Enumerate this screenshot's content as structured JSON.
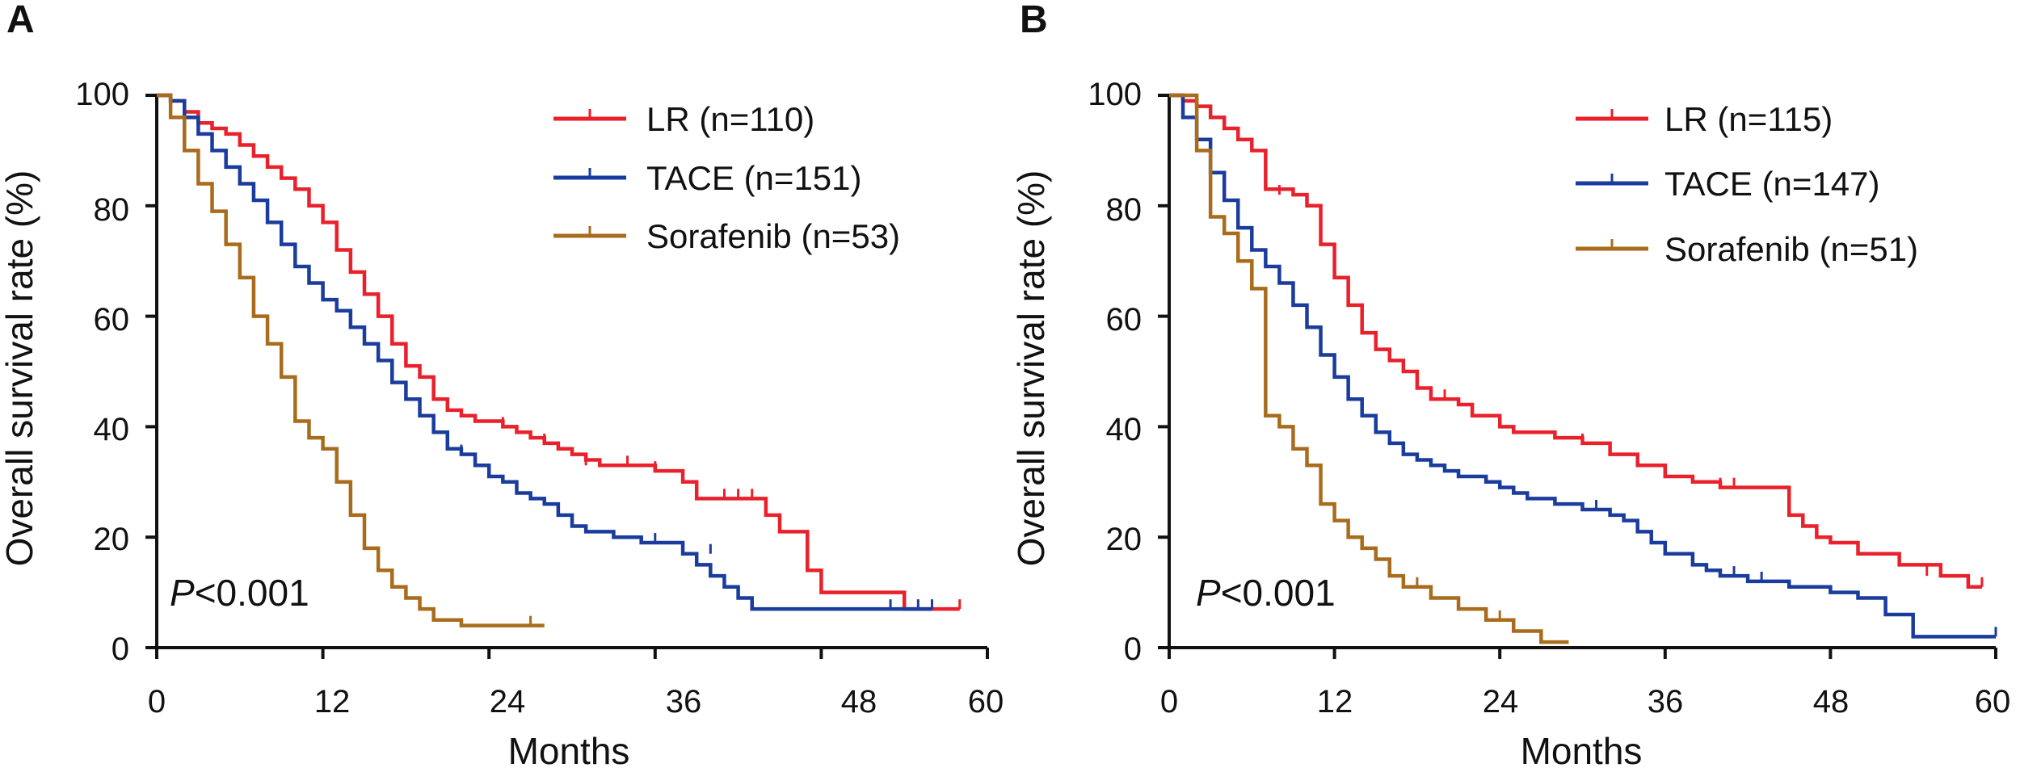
{
  "chart_data": [
    {
      "type": "line",
      "panel_label": "A",
      "xlabel": "Months",
      "ylabel": "Overall survival rate (%)",
      "xlim": [
        0,
        60
      ],
      "ylim": [
        0,
        100
      ],
      "xticks": [
        0,
        12,
        24,
        36,
        48,
        60
      ],
      "yticks": [
        0,
        20,
        40,
        60,
        80,
        100
      ],
      "annotation": {
        "italic": "P",
        "rest": "<0.001"
      },
      "series": [
        {
          "name": "LR (n=110)",
          "color": "#e8212b",
          "steps": [
            [
              0,
              100
            ],
            [
              1,
              99
            ],
            [
              2,
              97
            ],
            [
              3,
              95
            ],
            [
              4,
              94
            ],
            [
              5,
              93
            ],
            [
              6,
              91
            ],
            [
              7,
              89
            ],
            [
              8,
              87
            ],
            [
              9,
              85
            ],
            [
              10,
              83
            ],
            [
              11,
              80
            ],
            [
              12,
              77
            ],
            [
              13,
              72
            ],
            [
              14,
              68
            ],
            [
              15,
              64
            ],
            [
              16,
              60
            ],
            [
              17,
              55
            ],
            [
              18,
              51
            ],
            [
              19,
              49
            ],
            [
              20,
              45
            ],
            [
              21,
              43
            ],
            [
              22,
              42
            ],
            [
              23,
              41
            ],
            [
              25,
              40
            ],
            [
              26,
              39
            ],
            [
              27,
              38
            ],
            [
              28,
              37
            ],
            [
              29,
              36
            ],
            [
              30,
              35
            ],
            [
              31,
              34
            ],
            [
              32,
              33
            ],
            [
              36,
              32
            ],
            [
              38,
              30
            ],
            [
              39,
              27
            ],
            [
              44,
              24
            ],
            [
              45,
              21
            ],
            [
              47,
              14
            ],
            [
              48,
              10
            ],
            [
              54,
              7
            ]
          ],
          "end": 58,
          "censor": [
            [
              25,
              40
            ],
            [
              28,
              37
            ],
            [
              31,
              33
            ],
            [
              34,
              33
            ],
            [
              36,
              32
            ],
            [
              41,
              27
            ],
            [
              42,
              27
            ],
            [
              43,
              27
            ],
            [
              58,
              7
            ]
          ]
        },
        {
          "name": "TACE (n=151)",
          "color": "#1a3c9c",
          "steps": [
            [
              0,
              100
            ],
            [
              1,
              99
            ],
            [
              2,
              96
            ],
            [
              3,
              93
            ],
            [
              4,
              90
            ],
            [
              5,
              87
            ],
            [
              6,
              84
            ],
            [
              7,
              81
            ],
            [
              8,
              77
            ],
            [
              9,
              73
            ],
            [
              10,
              69
            ],
            [
              11,
              66
            ],
            [
              12,
              63
            ],
            [
              13,
              61
            ],
            [
              14,
              58
            ],
            [
              15,
              55
            ],
            [
              16,
              52
            ],
            [
              17,
              48
            ],
            [
              18,
              45
            ],
            [
              19,
              42
            ],
            [
              20,
              39
            ],
            [
              21,
              36
            ],
            [
              22,
              35
            ],
            [
              23,
              33
            ],
            [
              24,
              31
            ],
            [
              25,
              30
            ],
            [
              26,
              28
            ],
            [
              27,
              27
            ],
            [
              28,
              26
            ],
            [
              29,
              24
            ],
            [
              30,
              22
            ],
            [
              31,
              21
            ],
            [
              33,
              20
            ],
            [
              35,
              19
            ],
            [
              38,
              17
            ],
            [
              39,
              15
            ],
            [
              40,
              13
            ],
            [
              41,
              11
            ],
            [
              42,
              9
            ],
            [
              43,
              7
            ]
          ],
          "end": 56,
          "censor": [
            [
              22,
              35
            ],
            [
              36,
              19
            ],
            [
              40,
              17
            ],
            [
              53,
              7
            ],
            [
              55,
              7
            ],
            [
              56,
              7
            ]
          ]
        },
        {
          "name": "Sorafenib (n=53)",
          "color": "#a86c1c",
          "steps": [
            [
              0,
              100
            ],
            [
              1,
              96
            ],
            [
              2,
              90
            ],
            [
              3,
              84
            ],
            [
              4,
              79
            ],
            [
              5,
              73
            ],
            [
              6,
              67
            ],
            [
              7,
              60
            ],
            [
              8,
              55
            ],
            [
              9,
              49
            ],
            [
              10,
              41
            ],
            [
              11,
              38
            ],
            [
              12,
              36
            ],
            [
              13,
              30
            ],
            [
              14,
              24
            ],
            [
              15,
              18
            ],
            [
              16,
              14
            ],
            [
              17,
              11
            ],
            [
              18,
              9
            ],
            [
              19,
              7
            ],
            [
              20,
              5
            ],
            [
              22,
              4
            ]
          ],
          "end": 28,
          "censor": [
            [
              20,
              5
            ],
            [
              27,
              4
            ]
          ]
        }
      ]
    },
    {
      "type": "line",
      "panel_label": "B",
      "xlabel": "Months",
      "ylabel": "Overall survival rate (%)",
      "xlim": [
        0,
        60
      ],
      "ylim": [
        0,
        100
      ],
      "xticks": [
        0,
        12,
        24,
        36,
        48,
        60
      ],
      "yticks": [
        0,
        20,
        40,
        60,
        80,
        100
      ],
      "annotation": {
        "italic": "P",
        "rest": "<0.001"
      },
      "series": [
        {
          "name": "LR (n=115)",
          "color": "#e8212b",
          "steps": [
            [
              0,
              100
            ],
            [
              1,
              99
            ],
            [
              2,
              98
            ],
            [
              3,
              96
            ],
            [
              4,
              94
            ],
            [
              5,
              92
            ],
            [
              6,
              90
            ],
            [
              7,
              83
            ],
            [
              9,
              82
            ],
            [
              10,
              80
            ],
            [
              11,
              73
            ],
            [
              12,
              67
            ],
            [
              13,
              62
            ],
            [
              14,
              57
            ],
            [
              15,
              54
            ],
            [
              16,
              52
            ],
            [
              17,
              50
            ],
            [
              18,
              47
            ],
            [
              19,
              45
            ],
            [
              21,
              44
            ],
            [
              22,
              42
            ],
            [
              24,
              40
            ],
            [
              25,
              39
            ],
            [
              28,
              38
            ],
            [
              30,
              37
            ],
            [
              32,
              35
            ],
            [
              34,
              33
            ],
            [
              36,
              31
            ],
            [
              38,
              30
            ],
            [
              40,
              29
            ],
            [
              45,
              24
            ],
            [
              46,
              22
            ],
            [
              47,
              20
            ],
            [
              48,
              19
            ],
            [
              50,
              17
            ],
            [
              53,
              15
            ],
            [
              56,
              13
            ],
            [
              58,
              11
            ]
          ],
          "end": 59,
          "censor": [
            [
              8,
              82
            ],
            [
              14,
              57
            ],
            [
              20,
              45
            ],
            [
              30,
              37
            ],
            [
              32,
              35
            ],
            [
              40,
              29
            ],
            [
              41,
              29
            ],
            [
              55,
              13
            ],
            [
              59,
              11
            ]
          ]
        },
        {
          "name": "TACE (n=147)",
          "color": "#1a3c9c",
          "steps": [
            [
              0,
              100
            ],
            [
              1,
              96
            ],
            [
              2,
              92
            ],
            [
              3,
              86
            ],
            [
              4,
              81
            ],
            [
              5,
              76
            ],
            [
              6,
              72
            ],
            [
              7,
              69
            ],
            [
              8,
              66
            ],
            [
              9,
              62
            ],
            [
              10,
              58
            ],
            [
              11,
              53
            ],
            [
              12,
              49
            ],
            [
              13,
              45
            ],
            [
              14,
              42
            ],
            [
              15,
              39
            ],
            [
              16,
              37
            ],
            [
              17,
              35
            ],
            [
              18,
              34
            ],
            [
              19,
              33
            ],
            [
              20,
              32
            ],
            [
              21,
              31
            ],
            [
              23,
              30
            ],
            [
              24,
              29
            ],
            [
              25,
              28
            ],
            [
              26,
              27
            ],
            [
              28,
              26
            ],
            [
              30,
              25
            ],
            [
              32,
              24
            ],
            [
              33,
              23
            ],
            [
              34,
              21
            ],
            [
              35,
              19
            ],
            [
              36,
              17
            ],
            [
              38,
              15
            ],
            [
              39,
              14
            ],
            [
              40,
              13
            ],
            [
              42,
              12
            ],
            [
              45,
              11
            ],
            [
              48,
              10
            ],
            [
              50,
              9
            ],
            [
              52,
              6
            ],
            [
              54,
              2
            ]
          ],
          "end": 60,
          "censor": [
            [
              31,
              25
            ],
            [
              41,
              13
            ],
            [
              43,
              12
            ],
            [
              60,
              2
            ]
          ]
        },
        {
          "name": "Sorafenib (n=51)",
          "color": "#a86c1c",
          "steps": [
            [
              0,
              100
            ],
            [
              2,
              90
            ],
            [
              3,
              78
            ],
            [
              4,
              75
            ],
            [
              5,
              70
            ],
            [
              6,
              65
            ],
            [
              7,
              42
            ],
            [
              8,
              40
            ],
            [
              9,
              36
            ],
            [
              10,
              33
            ],
            [
              11,
              26
            ],
            [
              12,
              23
            ],
            [
              13,
              20
            ],
            [
              14,
              18
            ],
            [
              15,
              16
            ],
            [
              16,
              13
            ],
            [
              17,
              11
            ],
            [
              19,
              9
            ],
            [
              21,
              7
            ],
            [
              23,
              5
            ],
            [
              25,
              3
            ],
            [
              27,
              1
            ]
          ],
          "end": 29,
          "censor": [
            [
              18,
              11
            ],
            [
              24,
              5
            ]
          ]
        }
      ]
    }
  ]
}
